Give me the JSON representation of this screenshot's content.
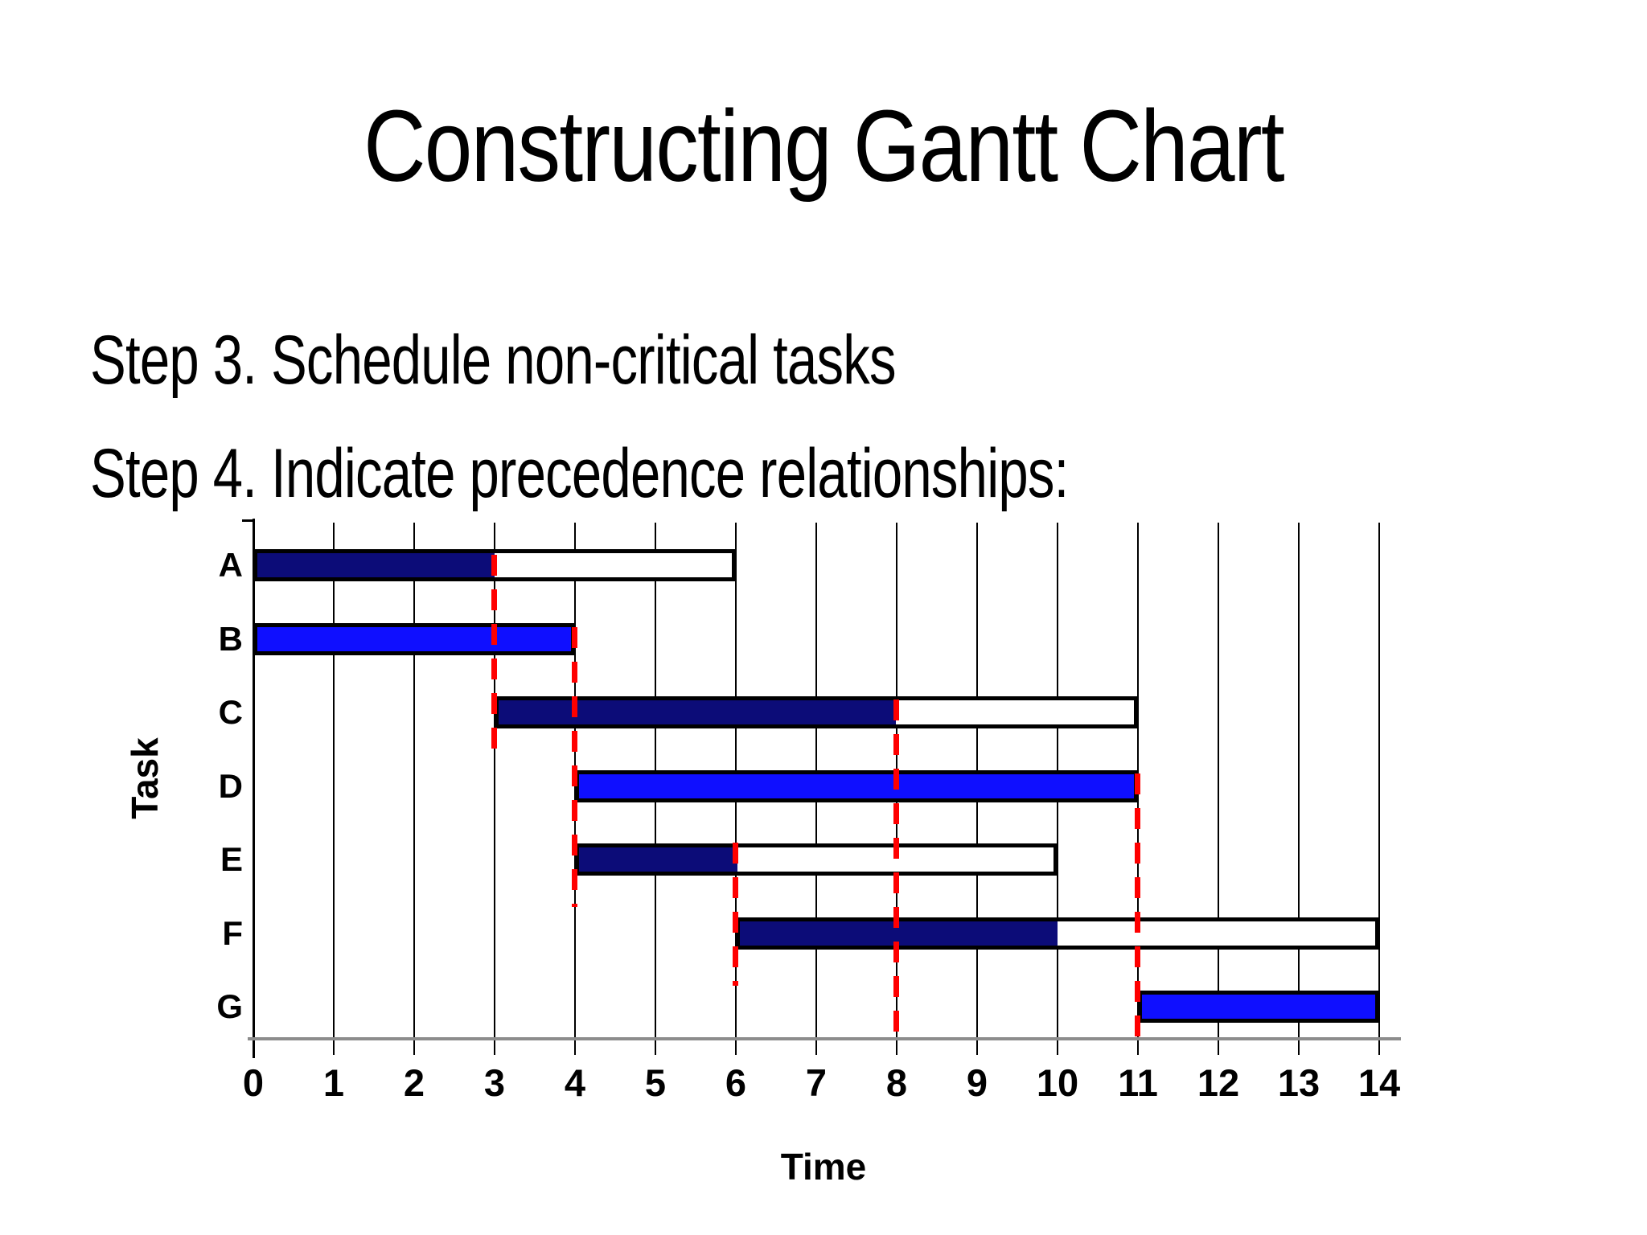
{
  "slide": {
    "title": "Constructing Gantt Chart",
    "lines": [
      "Step 3. Schedule non-critical tasks",
      "Step 4. Indicate precedence relationships:"
    ]
  },
  "chart_data": {
    "type": "bar",
    "subtype": "gantt",
    "title": "",
    "xlabel": "Time",
    "ylabel": "Task",
    "xlim": [
      0,
      14
    ],
    "x_ticks": [
      0,
      1,
      2,
      3,
      4,
      5,
      6,
      7,
      8,
      9,
      10,
      11,
      12,
      13,
      14
    ],
    "row_labels": [
      "A",
      "B",
      "C",
      "D",
      "E",
      "F",
      "G"
    ],
    "grid": "vertical-only",
    "bars": [
      {
        "task": "A",
        "outline_start": 0,
        "outline_end": 6,
        "fill_start": 0,
        "fill_end": 3,
        "fill_color": "navy"
      },
      {
        "task": "B",
        "outline_start": 0,
        "outline_end": 4,
        "fill_start": 0,
        "fill_end": 4,
        "fill_color": "blue"
      },
      {
        "task": "C",
        "outline_start": 3,
        "outline_end": 11,
        "fill_start": 3,
        "fill_end": 8,
        "fill_color": "navy"
      },
      {
        "task": "D",
        "outline_start": 4,
        "outline_end": 11,
        "fill_start": 4,
        "fill_end": 11,
        "fill_color": "blue"
      },
      {
        "task": "E",
        "outline_start": 4,
        "outline_end": 10,
        "fill_start": 4,
        "fill_end": 6,
        "fill_color": "navy"
      },
      {
        "task": "F",
        "outline_start": 6,
        "outline_end": 14,
        "fill_start": 6,
        "fill_end": 10,
        "fill_color": "navy"
      },
      {
        "task": "G",
        "outline_start": 11,
        "outline_end": 14,
        "fill_start": 11,
        "fill_end": 14,
        "fill_color": "blue"
      }
    ],
    "precedence_dashes": [
      {
        "time": 3,
        "from_task": "A",
        "to_task": "C",
        "from_row": 0.08,
        "to_row": 2.86
      },
      {
        "time": 4,
        "from_task": "B",
        "to_task": "E",
        "from_row": 1.06,
        "to_row": 4.86
      },
      {
        "time": 6,
        "from_task": "E",
        "to_task": "F",
        "from_row": 3.99,
        "to_row": 5.93
      },
      {
        "time": 8,
        "from_task": "C",
        "to_task": "F",
        "from_row": 2.04,
        "to_row": 6.55
      },
      {
        "time": 11,
        "from_task": "D",
        "to_task": "G",
        "from_row": 3.05,
        "to_row": 6.68
      }
    ],
    "colors": {
      "navy": "#0C0C78",
      "blue": "#0F0FFF",
      "dash_red": "#FF0000",
      "grid": "#000000",
      "axis_line": "#8C8C8C"
    }
  }
}
